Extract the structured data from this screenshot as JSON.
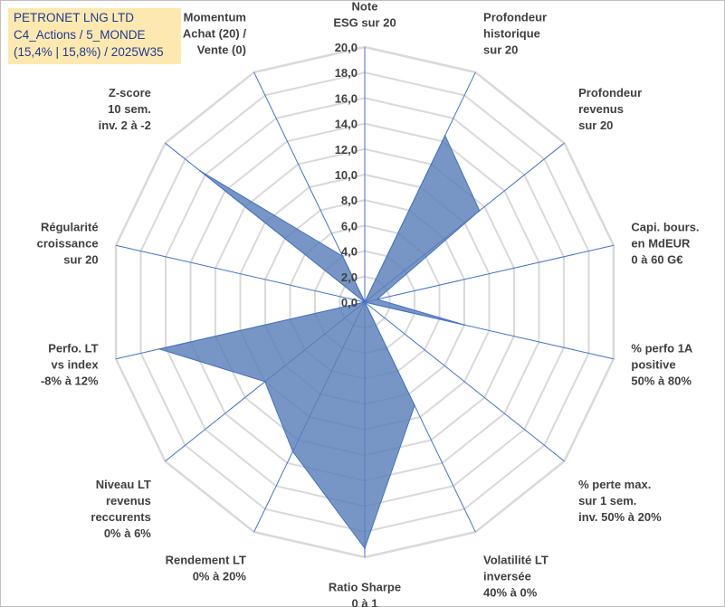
{
  "title_box": {
    "line1": "PETRONET LNG LTD",
    "line2": "C4_Actions / 5_MONDE",
    "line3": "(15,4% | 15,8%) / 2025W35"
  },
  "chart_data": {
    "type": "radar",
    "title": "PETRONET LNG LTD",
    "rmin": 0,
    "rmax": 20,
    "tick_step": 2,
    "tick_labels": [
      "0,0",
      "2,0",
      "4,0",
      "6,0",
      "8,0",
      "10,0",
      "12,0",
      "14,0",
      "16,0",
      "18,0",
      "20,0"
    ],
    "grid": true,
    "fill_color": "#5a7fb8",
    "line_color": "#4472c4",
    "axes": [
      {
        "lines": [
          "Note",
          "ESG sur 20"
        ],
        "value": 0
      },
      {
        "lines": [
          "Profondeur",
          "historique",
          "sur 20"
        ],
        "value": 14.5
      },
      {
        "lines": [
          "Profondeur",
          "revenus",
          "sur 20"
        ],
        "value": 11.5
      },
      {
        "lines": [
          "Capi. bours.",
          "en MdEUR",
          "0 à 60 G€"
        ],
        "value": 1.0
      },
      {
        "lines": [
          "% perfo 1A",
          "positive",
          "50% à 80%"
        ],
        "value": 8.0
      },
      {
        "lines": [
          "% perte max.",
          "sur 1 sem.",
          "inv. 50% à 20%"
        ],
        "value": 0
      },
      {
        "lines": [
          "Volatilité LT",
          "inversée",
          "40% à 0%"
        ],
        "value": 9.0
      },
      {
        "lines": [
          "Ratio Sharpe",
          "0 à 1"
        ],
        "value": 19.3
      },
      {
        "lines": [
          "Rendement LT",
          "0% à 20%"
        ],
        "value": 13.0
      },
      {
        "lines": [
          "Niveau LT",
          "revenus",
          "reccurents",
          "0% à 6%"
        ],
        "value": 10.0
      },
      {
        "lines": [
          "Perfo. LT",
          "vs index",
          "-8% à 12%"
        ],
        "value": 16.5
      },
      {
        "lines": [
          "Régularité",
          "croissance",
          "sur 20"
        ],
        "value": 0
      },
      {
        "lines": [
          "Z-score",
          "10 sem.",
          "inv. 2 à -2"
        ],
        "value": 16.5
      },
      {
        "lines": [
          "Momentum",
          "Achat (20) /",
          "Vente (0)"
        ],
        "value": 4.0
      }
    ]
  }
}
